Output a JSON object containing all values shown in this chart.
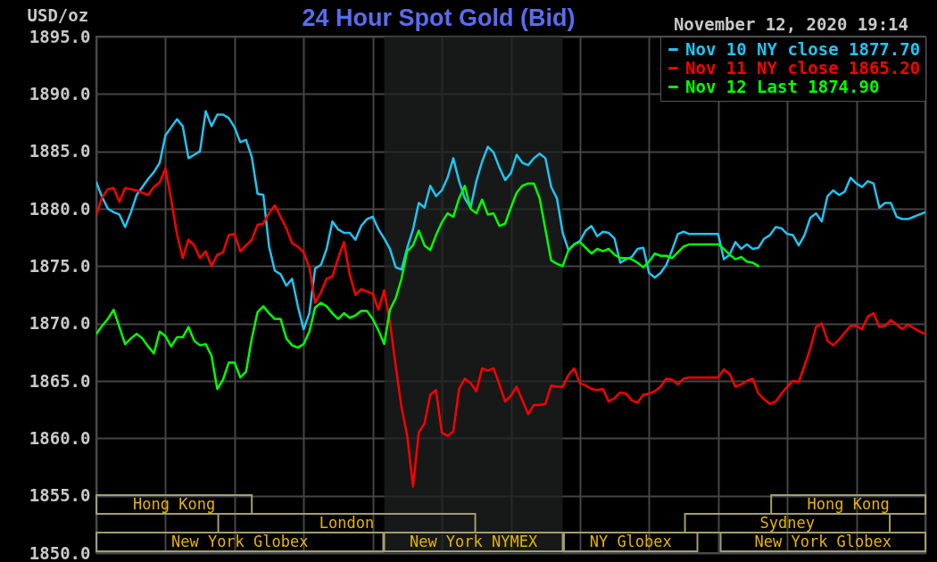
{
  "chart_data": {
    "type": "line",
    "title": "24 Hour Spot Gold (Bid)",
    "subtitle": "November 12, 2020 19:14",
    "ylabel": "USD/oz",
    "categories": [
      null,
      null,
      null,
      null,
      null,
      null,
      null,
      null,
      null,
      null,
      null,
      null,
      null,
      null,
      null,
      null,
      null,
      null,
      null,
      null,
      null,
      null,
      null,
      null,
      null,
      null,
      null,
      null,
      null,
      null,
      null,
      null,
      null,
      null,
      null,
      null,
      null,
      null,
      null,
      null,
      null,
      null,
      null,
      null,
      null,
      null,
      null,
      null,
      null,
      null,
      null,
      null,
      null,
      null,
      null,
      null,
      null,
      null,
      null,
      null,
      null,
      null,
      null,
      null,
      null,
      null,
      null,
      null,
      null,
      null,
      null,
      null,
      null,
      null,
      null,
      null,
      null,
      null,
      null,
      null,
      null,
      null,
      null,
      null,
      null,
      null,
      null,
      null,
      null,
      null,
      null,
      null,
      null,
      null,
      null,
      null,
      null,
      null,
      null,
      null,
      null,
      null,
      null,
      null,
      null,
      null,
      null,
      null,
      null,
      null,
      null,
      null,
      null,
      null,
      null,
      null,
      null,
      null,
      null,
      null,
      null,
      null,
      null,
      null,
      null,
      null,
      null,
      null,
      null,
      null,
      null,
      null,
      null,
      null,
      null,
      null,
      null,
      null,
      null,
      null,
      null,
      null,
      null,
      null,
      null
    ],
    "series": [
      {
        "name": "Nov 10 NY close 1877.70",
        "color": "#20c4f0",
        "values": [
          1882.3,
          1881.0,
          1880.0,
          1879.7,
          1879.5,
          1878.4,
          1879.7,
          1881.2,
          1881.9,
          1882.6,
          1883.2,
          1884.0,
          1886.4,
          1887.1,
          1887.8,
          1887.2,
          1884.4,
          1884.7,
          1885.0,
          1888.5,
          1887.2,
          1888.2,
          1888.2,
          1887.9,
          1887.1,
          1885.8,
          1886.0,
          1884.5,
          1881.3,
          1881.2,
          1876.7,
          1874.6,
          1874.3,
          1873.3,
          1873.9,
          1871.5,
          1869.5,
          1870.9,
          1874.8,
          1875.1,
          1876.5,
          1878.9,
          1878.2,
          1877.9,
          1877.9,
          1877.3,
          1878.5,
          1879.1,
          1879.3,
          1878.2,
          1877.4,
          1876.5,
          1874.9,
          1874.7,
          1876.6,
          1878.2,
          1880.5,
          1880.1,
          1882.0,
          1881.1,
          1881.6,
          1882.7,
          1884.4,
          1882.4,
          1880.9,
          1880.1,
          1882.4,
          1884.1,
          1885.4,
          1884.9,
          1883.6,
          1882.5,
          1883.1,
          1884.7,
          1884.0,
          1883.8,
          1884.4,
          1884.8,
          1884.4,
          1881.9,
          1880.9,
          1877.9,
          1876.4,
          1876.9,
          1877.2,
          1878.1,
          1878.5,
          1877.6,
          1878.0,
          1877.9,
          1877.4,
          1875.3,
          1875.6,
          1875.8,
          1876.5,
          1876.6,
          1874.4,
          1874.0,
          1874.4,
          1875.1,
          1876.4,
          1877.8,
          1878.0,
          1877.8,
          1877.8,
          1877.8,
          1877.8,
          1877.8,
          1877.8,
          1875.6,
          1876.0,
          1877.1,
          1876.5,
          1876.9,
          1876.5,
          1876.6,
          1877.4,
          1877.7,
          1878.4,
          1878.3,
          1877.8,
          1877.7,
          1876.8,
          1877.7,
          1879.2,
          1879.6,
          1878.9,
          1881.1,
          1881.6,
          1881.2,
          1881.5,
          1882.7,
          1882.2,
          1881.9,
          1882.4,
          1882.2,
          1880.1,
          1880.5,
          1880.5,
          1879.3,
          1879.1,
          1879.1,
          1879.3,
          1879.5,
          1879.7
        ]
      },
      {
        "name": "Nov 11 NY close 1865.20",
        "color": "#ff0000",
        "values": [
          1879.5,
          1881.0,
          1881.7,
          1881.8,
          1880.6,
          1881.8,
          1881.7,
          1881.6,
          1881.4,
          1881.2,
          1881.9,
          1882.3,
          1883.5,
          1880.8,
          1877.8,
          1875.7,
          1877.3,
          1876.8,
          1875.7,
          1876.3,
          1875.0,
          1876.0,
          1876.2,
          1877.7,
          1877.8,
          1876.3,
          1876.8,
          1877.3,
          1878.6,
          1878.7,
          1879.6,
          1880.3,
          1879.3,
          1878.3,
          1877.0,
          1876.7,
          1876.2,
          1874.9,
          1871.8,
          1872.7,
          1873.9,
          1874.1,
          1875.7,
          1877.1,
          1874.3,
          1872.5,
          1873.0,
          1872.8,
          1872.6,
          1871.2,
          1872.9,
          1870.1,
          1866.3,
          1862.7,
          1860.2,
          1855.8,
          1860.5,
          1861.3,
          1863.8,
          1864.2,
          1860.5,
          1860.2,
          1860.6,
          1864.3,
          1865.2,
          1864.8,
          1864.1,
          1866.1,
          1865.9,
          1866.1,
          1864.7,
          1863.2,
          1863.7,
          1864.5,
          1863.3,
          1862.1,
          1862.9,
          1862.9,
          1863.0,
          1864.6,
          1864.5,
          1864.5,
          1865.5,
          1866.1,
          1864.8,
          1864.6,
          1864.3,
          1864.2,
          1864.3,
          1863.2,
          1863.5,
          1864.0,
          1863.9,
          1863.3,
          1863.1,
          1863.8,
          1863.9,
          1864.1,
          1864.5,
          1865.2,
          1865.1,
          1864.7,
          1865.2,
          1865.3,
          1865.3,
          1865.3,
          1865.3,
          1865.3,
          1865.3,
          1866.0,
          1865.6,
          1864.5,
          1864.7,
          1865.0,
          1865.2,
          1863.9,
          1863.4,
          1863.0,
          1863.2,
          1863.9,
          1864.5,
          1865.0,
          1864.9,
          1866.3,
          1867.8,
          1869.7,
          1870.0,
          1868.5,
          1868.1,
          1868.6,
          1869.2,
          1869.8,
          1869.8,
          1869.5,
          1870.6,
          1870.9,
          1869.7,
          1869.8,
          1870.3,
          1869.9,
          1869.5,
          1869.9,
          1869.6,
          1869.3,
          1869.1
        ]
      },
      {
        "name": "Nov 12 Last 1874.90",
        "color": "#00ff00",
        "values": [
          1869.1,
          1869.8,
          1870.4,
          1871.2,
          1869.7,
          1868.2,
          1868.7,
          1869.1,
          1868.7,
          1868.0,
          1867.4,
          1869.3,
          1868.9,
          1868.0,
          1868.8,
          1868.8,
          1869.7,
          1868.5,
          1868.1,
          1868.2,
          1867.2,
          1864.3,
          1865.1,
          1866.6,
          1866.6,
          1865.3,
          1865.8,
          1868.7,
          1871.0,
          1871.5,
          1870.9,
          1870.4,
          1870.4,
          1868.7,
          1868.1,
          1867.9,
          1868.2,
          1869.3,
          1871.4,
          1871.8,
          1871.5,
          1870.9,
          1870.4,
          1870.9,
          1870.5,
          1870.7,
          1871.1,
          1871.1,
          1870.4,
          1869.4,
          1868.2,
          1871.2,
          1872.2,
          1873.9,
          1876.3,
          1876.8,
          1878.1,
          1876.8,
          1876.4,
          1877.7,
          1878.8,
          1879.6,
          1879.3,
          1880.9,
          1882.0,
          1880.0,
          1879.6,
          1880.8,
          1879.5,
          1879.6,
          1878.5,
          1878.7,
          1880.1,
          1881.4,
          1882.0,
          1882.2,
          1882.2,
          1880.9,
          1878.2,
          1875.5,
          1875.2,
          1875.0,
          1876.4,
          1876.9,
          1877.1,
          1876.6,
          1876.1,
          1876.5,
          1876.3,
          1876.5,
          1876.0,
          1875.7,
          1875.7,
          1875.6,
          1875.3,
          1874.9,
          1875.4,
          1876.1,
          1875.9,
          1875.9,
          1875.7,
          1876.2,
          1876.7,
          1876.9,
          1876.9,
          1876.9,
          1876.9,
          1876.9,
          1876.9,
          1876.5,
          1876.0,
          1875.6,
          1875.8,
          1875.4,
          1875.3,
          1875.0,
          null,
          null,
          null,
          null,
          null,
          null,
          null,
          null,
          null,
          null,
          null,
          null,
          null,
          null,
          null,
          null,
          null,
          null,
          null,
          null,
          null,
          null,
          null,
          null,
          null,
          null,
          null,
          null,
          null
        ]
      }
    ],
    "ylim": [
      1850,
      1895
    ],
    "yticks": [
      {
        "value": 1850,
        "label": "1850.0"
      },
      {
        "value": 1855,
        "label": "1855.0"
      },
      {
        "value": 1860,
        "label": "1860.0"
      },
      {
        "value": 1865,
        "label": "1865.0"
      },
      {
        "value": 1870,
        "label": "1870.0"
      },
      {
        "value": 1875,
        "label": "1875.0"
      },
      {
        "value": 1880,
        "label": "1880.0"
      },
      {
        "value": 1885,
        "label": "1885.0"
      },
      {
        "value": 1890,
        "label": "1890.0"
      },
      {
        "value": 1895,
        "label": "1895.0"
      }
    ],
    "grid": true,
    "legend": "top right",
    "annotations": [
      "Hong Kong",
      "Hong Kong",
      "London",
      "Sydney",
      "New York Globex",
      "New York NYMEX",
      "NY Globex",
      "New York Globex"
    ]
  }
}
